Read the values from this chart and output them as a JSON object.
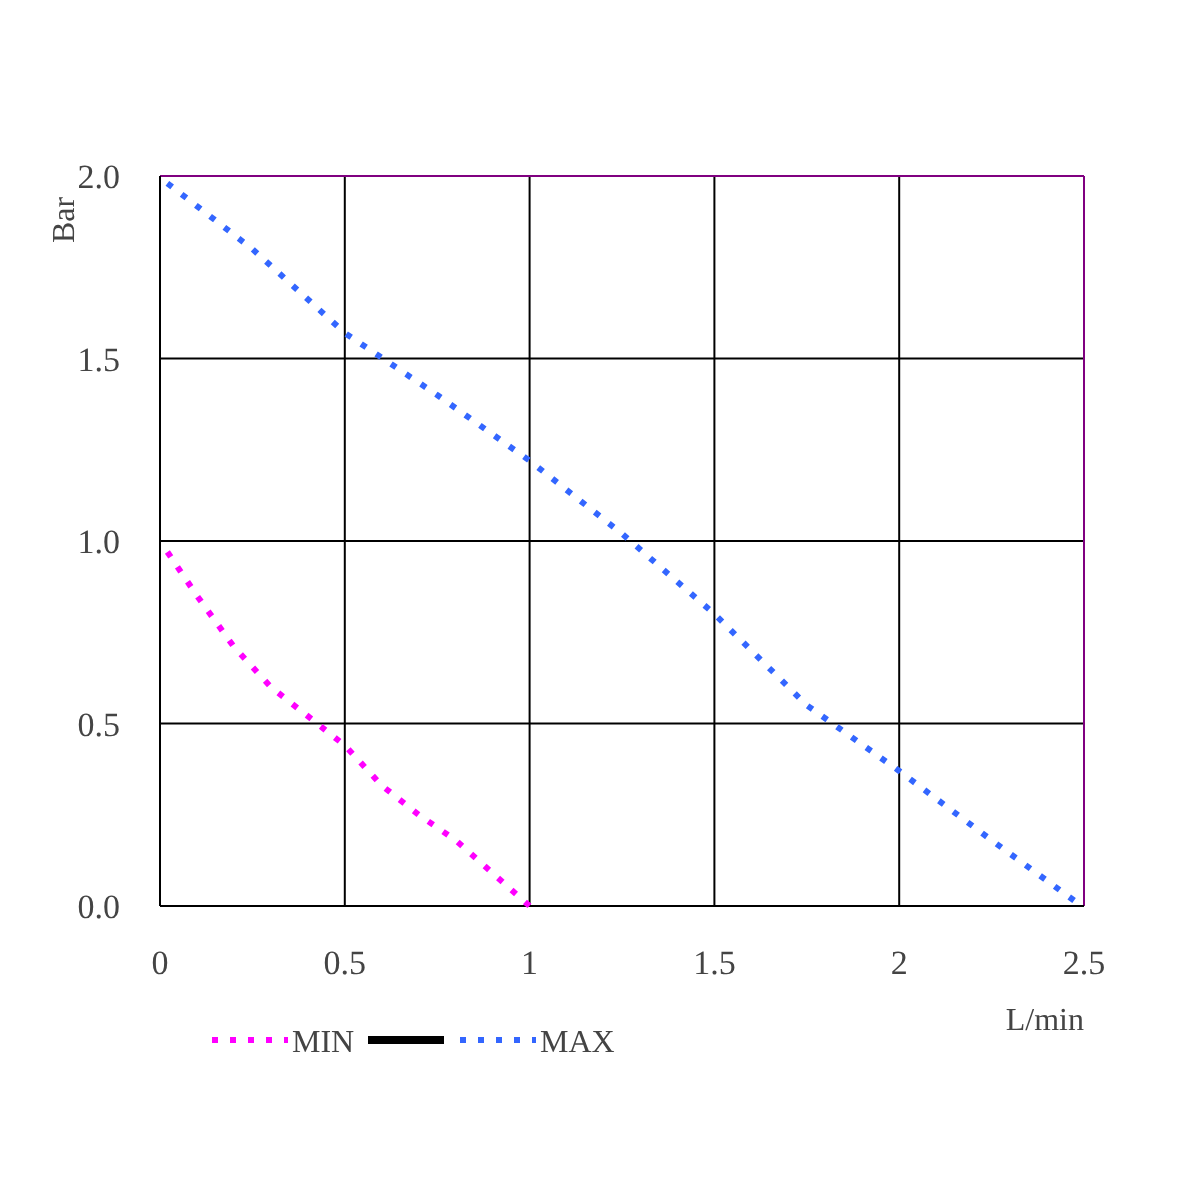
{
  "chart_data": {
    "type": "line",
    "xlabel": "L/min",
    "ylabel": "Bar",
    "xlim": [
      0,
      2.5
    ],
    "ylim": [
      0,
      2
    ],
    "xticks": [
      0,
      {
        "value": 0.5,
        "label": "0.5"
      },
      1,
      {
        "value": 1.5,
        "label": "1.5"
      },
      2,
      {
        "value": 2.5,
        "label": "2.5"
      }
    ],
    "yticks": [
      {
        "value": 0,
        "label": "0.0"
      },
      {
        "value": 0.5,
        "label": "0.5"
      },
      {
        "value": 1,
        "label": "1.0"
      },
      {
        "value": 1.5,
        "label": "1.5"
      },
      {
        "value": 2,
        "label": "2.0"
      }
    ],
    "grid": true,
    "legend": "bottom left",
    "line_style": "dotted",
    "series": [
      {
        "name": "MIN",
        "color": "#ff00ff",
        "x": [
          0.02,
          0.1,
          0.2,
          0.3,
          0.4,
          0.5,
          0.6,
          0.7,
          0.8,
          0.9,
          1.0
        ],
        "values": [
          0.97,
          0.85,
          0.71,
          0.6,
          0.52,
          0.44,
          0.33,
          0.25,
          0.18,
          0.09,
          0.0
        ]
      },
      {
        "color": "#000000",
        "line_style": "solid"
      },
      {
        "name": "MAX",
        "color": "#3366ff",
        "x": [
          0.02,
          0.25,
          0.5,
          0.75,
          1.0,
          1.25,
          1.5,
          1.75,
          2.0,
          2.25,
          2.48
        ],
        "values": [
          1.98,
          1.8,
          1.57,
          1.4,
          1.22,
          1.02,
          0.8,
          0.55,
          0.37,
          0.18,
          0.01
        ]
      }
    ]
  }
}
